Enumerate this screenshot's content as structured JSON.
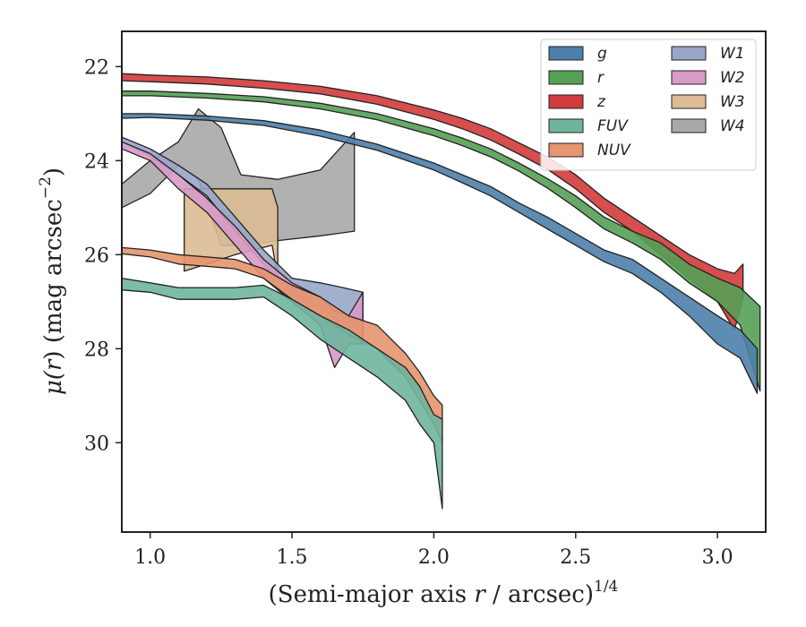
{
  "chart_data": {
    "type": "area",
    "xlabel": "(Semi-major axis r / arcsec)",
    "xlabel_italic_part": "r",
    "xlabel_pre": "(Semi-major axis ",
    "xlabel_post": " / arcsec)",
    "xlabel_sup": "1/4",
    "ylabel_pre": "μ(",
    "ylabel_r": "r",
    "ylabel_post": ") (mag arcsec",
    "ylabel_sup": "−2",
    "ylabel_close": ")",
    "xlim": [
      0.9,
      3.17
    ],
    "ylim": [
      31.9,
      21.25
    ],
    "y_inverted": true,
    "xticks": [
      1.0,
      1.5,
      2.0,
      2.5,
      3.0
    ],
    "xtick_labels": [
      "1.0",
      "1.5",
      "2.0",
      "2.5",
      "3.0"
    ],
    "yticks": [
      22,
      24,
      26,
      28,
      30
    ],
    "ytick_labels": [
      "22",
      "24",
      "26",
      "28",
      "30"
    ],
    "grid": false,
    "legend_position": "top-right",
    "legend_columns": 2,
    "series": [
      {
        "name": "W4",
        "color": "#a8a8a8",
        "points": [
          [
            0.9,
            24.5,
            25.0
          ],
          [
            1.0,
            24.0,
            24.7
          ],
          [
            1.1,
            23.6,
            24.1
          ],
          [
            1.17,
            22.9,
            24.4
          ],
          [
            1.25,
            23.3,
            25.8
          ],
          [
            1.32,
            24.3,
            25.8
          ],
          [
            1.45,
            24.4,
            25.7
          ],
          [
            1.6,
            24.2,
            25.6
          ],
          [
            1.72,
            23.4,
            25.5
          ]
        ]
      },
      {
        "name": "W3",
        "color": "#dcbc94",
        "points": [
          [
            1.12,
            24.6,
            26.35
          ],
          [
            1.2,
            24.6,
            26.2
          ],
          [
            1.3,
            24.6,
            26.0
          ],
          [
            1.43,
            24.6,
            25.8
          ],
          [
            1.45,
            25.0,
            26.5
          ]
        ]
      },
      {
        "name": "z",
        "color": "#d13b3b",
        "points": [
          [
            0.9,
            22.15,
            22.3
          ],
          [
            1.0,
            22.18,
            22.32
          ],
          [
            1.2,
            22.22,
            22.37
          ],
          [
            1.4,
            22.3,
            22.46
          ],
          [
            1.6,
            22.42,
            22.58
          ],
          [
            1.8,
            22.62,
            22.8
          ],
          [
            2.0,
            22.92,
            23.12
          ],
          [
            2.1,
            23.1,
            23.32
          ],
          [
            2.2,
            23.32,
            23.56
          ],
          [
            2.3,
            23.62,
            23.86
          ],
          [
            2.4,
            23.92,
            24.18
          ],
          [
            2.5,
            24.3,
            24.6
          ],
          [
            2.6,
            24.8,
            25.1
          ],
          [
            2.7,
            25.2,
            25.5
          ],
          [
            2.8,
            25.6,
            26.0
          ],
          [
            2.9,
            26.0,
            26.5
          ],
          [
            3.0,
            26.3,
            27.0
          ],
          [
            3.06,
            26.4,
            27.6
          ],
          [
            3.09,
            26.2,
            26.9
          ]
        ]
      },
      {
        "name": "r",
        "color": "#55a055",
        "points": [
          [
            0.9,
            22.52,
            22.62
          ],
          [
            1.0,
            22.52,
            22.62
          ],
          [
            1.2,
            22.57,
            22.67
          ],
          [
            1.4,
            22.64,
            22.75
          ],
          [
            1.6,
            22.78,
            22.9
          ],
          [
            1.8,
            23.0,
            23.13
          ],
          [
            2.0,
            23.32,
            23.47
          ],
          [
            2.1,
            23.52,
            23.68
          ],
          [
            2.2,
            23.75,
            23.92
          ],
          [
            2.3,
            24.05,
            24.22
          ],
          [
            2.4,
            24.38,
            24.58
          ],
          [
            2.5,
            24.75,
            25.0
          ],
          [
            2.6,
            25.2,
            25.45
          ],
          [
            2.7,
            25.5,
            25.75
          ],
          [
            2.8,
            25.75,
            26.1
          ],
          [
            2.9,
            26.2,
            26.6
          ],
          [
            3.0,
            26.5,
            27.0
          ],
          [
            3.08,
            26.7,
            27.5
          ],
          [
            3.15,
            27.1,
            28.9
          ]
        ]
      },
      {
        "name": "g",
        "color": "#4c7faa",
        "points": [
          [
            0.9,
            23.0,
            23.1
          ],
          [
            1.0,
            23.0,
            23.08
          ],
          [
            1.2,
            23.05,
            23.14
          ],
          [
            1.4,
            23.15,
            23.25
          ],
          [
            1.6,
            23.35,
            23.48
          ],
          [
            1.8,
            23.65,
            23.78
          ],
          [
            2.0,
            24.05,
            24.2
          ],
          [
            2.1,
            24.3,
            24.47
          ],
          [
            2.2,
            24.55,
            24.75
          ],
          [
            2.3,
            24.9,
            25.1
          ],
          [
            2.4,
            25.2,
            25.45
          ],
          [
            2.5,
            25.55,
            25.8
          ],
          [
            2.6,
            25.9,
            26.15
          ],
          [
            2.7,
            26.1,
            26.4
          ],
          [
            2.8,
            26.5,
            26.8
          ],
          [
            2.9,
            26.9,
            27.3
          ],
          [
            3.0,
            27.3,
            27.9
          ],
          [
            3.08,
            27.6,
            28.2
          ],
          [
            3.14,
            28.0,
            28.95
          ]
        ]
      },
      {
        "name": "W1",
        "color": "#98a6c8",
        "points": [
          [
            0.9,
            23.5,
            23.6
          ],
          [
            1.0,
            23.75,
            23.9
          ],
          [
            1.1,
            24.1,
            24.3
          ],
          [
            1.2,
            24.5,
            24.75
          ],
          [
            1.3,
            25.2,
            25.5
          ],
          [
            1.4,
            25.9,
            26.2
          ],
          [
            1.5,
            26.5,
            26.9
          ],
          [
            1.6,
            26.6,
            27.1
          ],
          [
            1.68,
            26.7,
            27.5
          ],
          [
            1.75,
            26.8,
            27.6
          ]
        ]
      },
      {
        "name": "W2",
        "color": "#d89ac6",
        "points": [
          [
            0.9,
            23.6,
            23.75
          ],
          [
            1.0,
            23.85,
            24.0
          ],
          [
            1.1,
            24.3,
            24.6
          ],
          [
            1.2,
            24.8,
            25.1
          ],
          [
            1.3,
            25.4,
            25.8
          ],
          [
            1.4,
            26.1,
            26.5
          ],
          [
            1.5,
            26.6,
            27.0
          ],
          [
            1.6,
            26.9,
            27.5
          ],
          [
            1.65,
            27.2,
            28.4
          ],
          [
            1.7,
            27.3,
            27.9
          ],
          [
            1.75,
            26.8,
            27.9
          ]
        ]
      },
      {
        "name": "NUV",
        "color": "#e6956e",
        "points": [
          [
            0.9,
            25.85,
            25.98
          ],
          [
            1.0,
            25.9,
            26.05
          ],
          [
            1.1,
            26.0,
            26.2
          ],
          [
            1.2,
            26.05,
            26.25
          ],
          [
            1.3,
            26.1,
            26.3
          ],
          [
            1.4,
            26.3,
            26.5
          ],
          [
            1.5,
            26.65,
            26.95
          ],
          [
            1.6,
            26.9,
            27.3
          ],
          [
            1.7,
            27.3,
            27.7
          ],
          [
            1.8,
            27.5,
            28.0
          ],
          [
            1.9,
            28.1,
            28.6
          ],
          [
            1.95,
            28.5,
            29.1
          ],
          [
            2.0,
            29.0,
            29.6
          ],
          [
            2.03,
            29.2,
            30.0
          ]
        ]
      },
      {
        "name": "FUV",
        "color": "#6fb59c",
        "points": [
          [
            0.9,
            26.5,
            26.75
          ],
          [
            1.0,
            26.6,
            26.8
          ],
          [
            1.1,
            26.7,
            26.95
          ],
          [
            1.2,
            26.7,
            26.95
          ],
          [
            1.3,
            26.7,
            26.95
          ],
          [
            1.4,
            26.65,
            26.9
          ],
          [
            1.5,
            26.95,
            27.3
          ],
          [
            1.6,
            27.3,
            27.8
          ],
          [
            1.7,
            27.6,
            28.2
          ],
          [
            1.8,
            28.0,
            28.6
          ],
          [
            1.9,
            28.4,
            29.1
          ],
          [
            1.95,
            28.8,
            29.6
          ],
          [
            2.0,
            29.4,
            30.0
          ],
          [
            2.03,
            29.5,
            31.4
          ]
        ]
      }
    ],
    "legend_order": [
      "g",
      "r",
      "z",
      "FUV",
      "NUV",
      "W1",
      "W2",
      "W3",
      "W4"
    ]
  }
}
